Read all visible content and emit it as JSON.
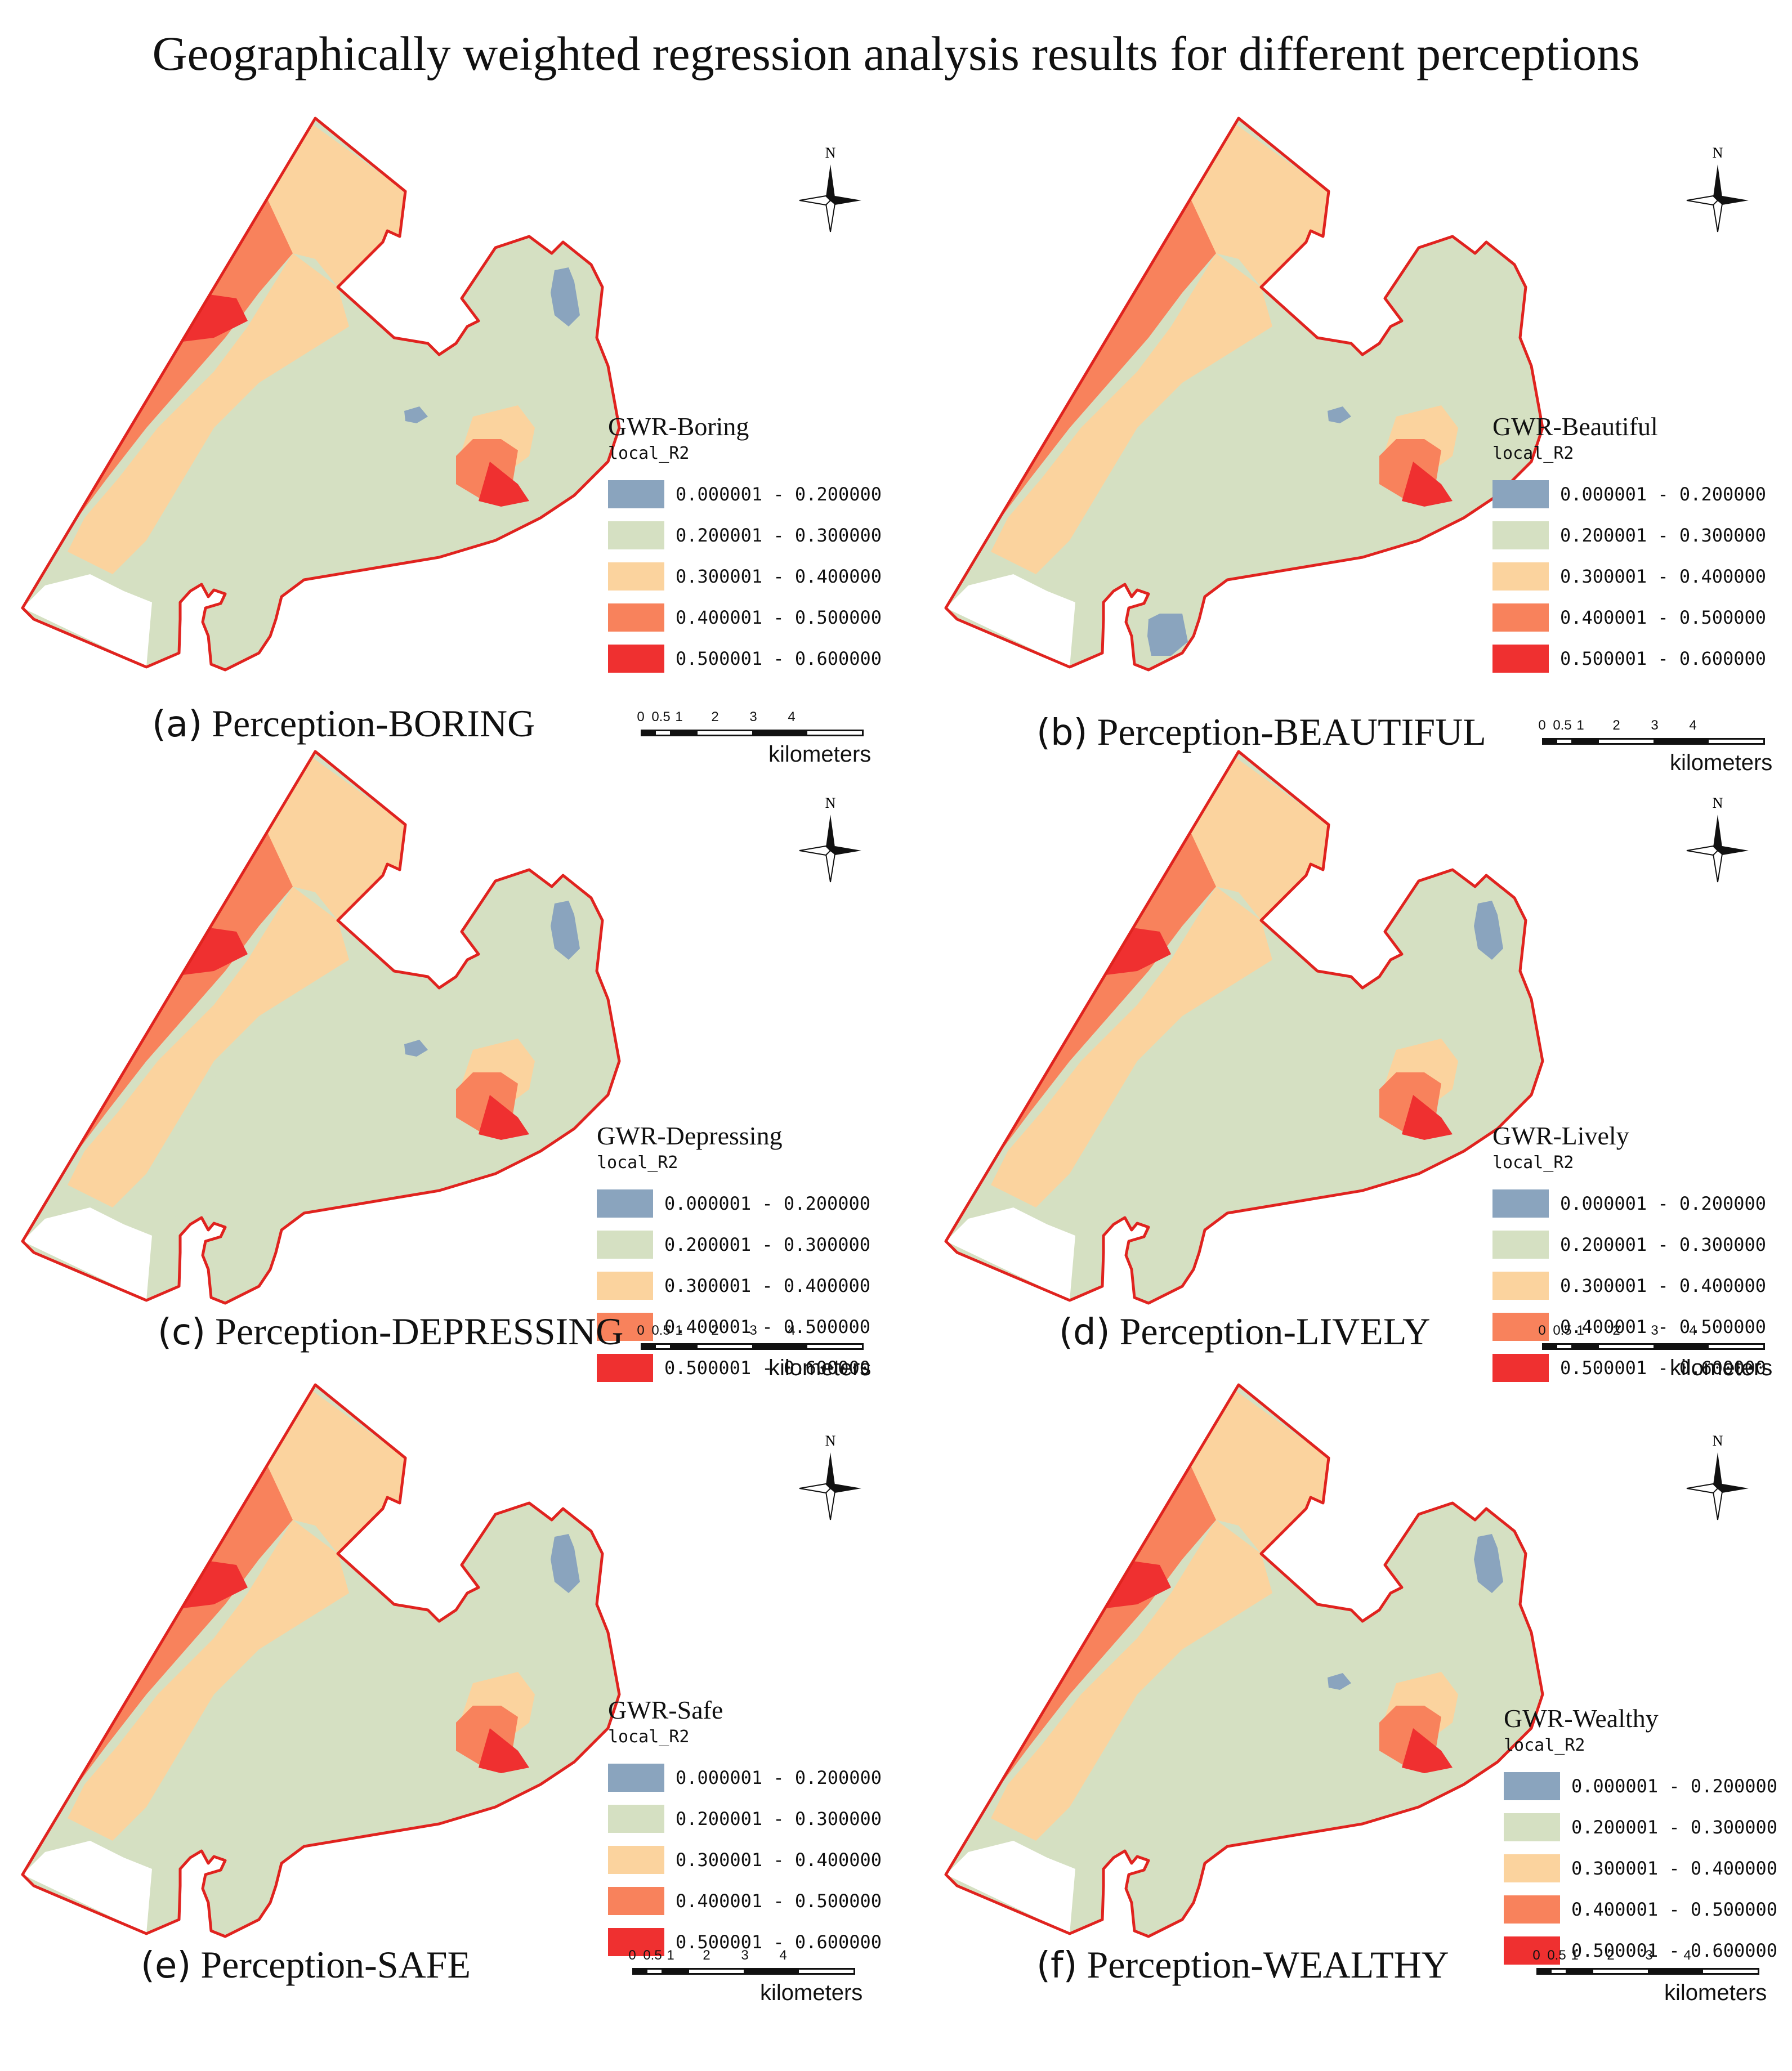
{
  "figure_title": "Geographically weighted regression analysis results for different perceptions",
  "legend_field": "local_R2",
  "scale": {
    "ticks": [
      "0",
      "0.5",
      "1",
      "2",
      "3",
      "4"
    ],
    "unit": "kilometers"
  },
  "north_label": "N",
  "colors": {
    "class_1": "#8aa4be",
    "class_2": "#d5e0c2",
    "class_3": "#fbd39e",
    "class_4": "#f8825c",
    "class_5": "#ef3030",
    "boundary": "#e0231f"
  },
  "classes": [
    {
      "range": "0.000001 - 0.200000",
      "color": "#8aa4be"
    },
    {
      "range": "0.200001 - 0.300000",
      "color": "#d5e0c2"
    },
    {
      "range": "0.300001 - 0.400000",
      "color": "#fbd39e"
    },
    {
      "range": "0.400001 - 0.500000",
      "color": "#f8825c"
    },
    {
      "range": "0.500001 - 0.600000",
      "color": "#ef3030"
    }
  ],
  "panels": [
    {
      "letter": "(a)",
      "caption": "Perception-BORING",
      "legend_title": "GWR-Boring"
    },
    {
      "letter": "(b)",
      "caption": "Perception-BEAUTIFUL",
      "legend_title": "GWR-Beautiful"
    },
    {
      "letter": "(c)",
      "caption": "Perception-DEPRESSING",
      "legend_title": "GWR-Depressing"
    },
    {
      "letter": "(d)",
      "caption": "Perception-LIVELY",
      "legend_title": "GWR-Lively"
    },
    {
      "letter": "(e)",
      "caption": "Perception-SAFE",
      "legend_title": "GWR-Safe"
    },
    {
      "letter": "(f)",
      "caption": "Perception-WEALTHY",
      "legend_title": "GWR-Wealthy"
    }
  ]
}
